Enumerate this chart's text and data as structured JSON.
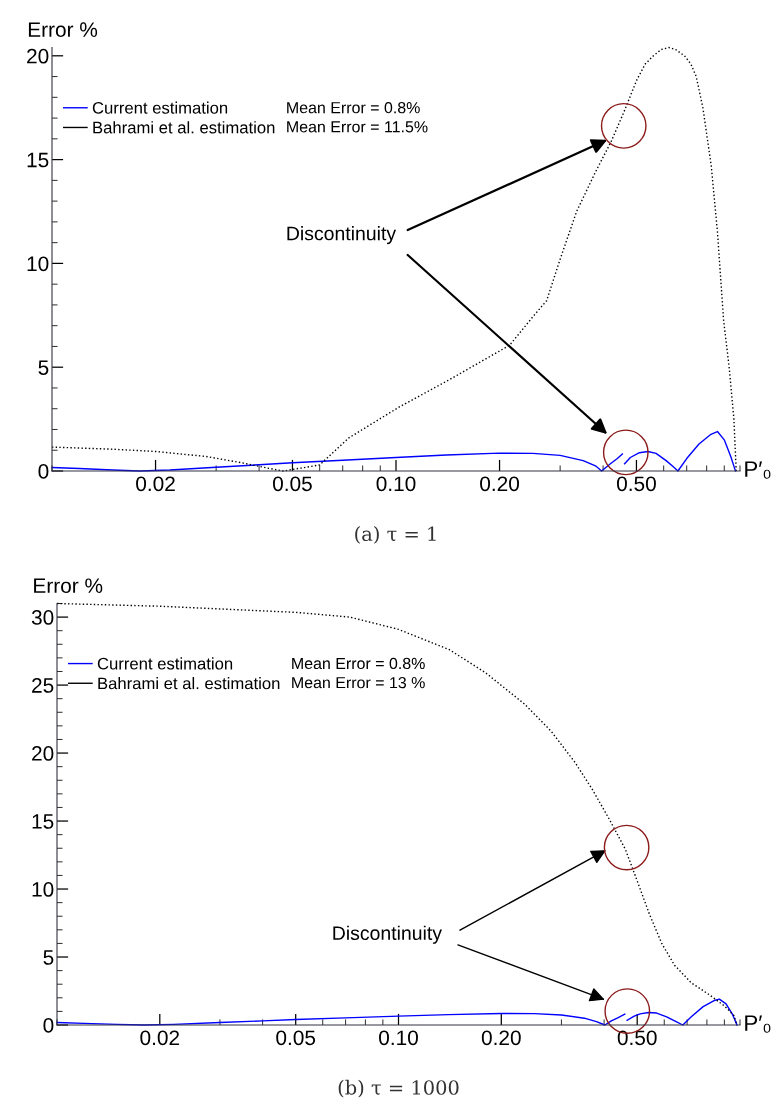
{
  "chart_data": [
    {
      "type": "line",
      "title": "(a) τ = 1",
      "ylabel": "Error %",
      "xlabel": "P′₀",
      "log": "x",
      "xlim": [
        0.01,
        1
      ],
      "ylim": [
        0,
        20.4
      ],
      "xticks": [
        {
          "value": 0.02,
          "label": "0.02"
        },
        {
          "value": 0.05,
          "label": "0.05"
        },
        {
          "value": 0.1,
          "label": "0.10"
        },
        {
          "value": 0.2,
          "label": "0.20"
        },
        {
          "value": 0.5,
          "label": "0.50"
        }
      ],
      "yticks": [
        0,
        5,
        10,
        15,
        20
      ],
      "grid": false,
      "legend": "top left",
      "series": [
        {
          "name": "Current estimation",
          "color": "#0000ff",
          "line_style": "solid",
          "x": [
            0.01,
            0.012,
            0.015,
            0.018,
            0.022,
            0.03,
            0.04,
            0.05,
            0.07,
            0.1,
            0.14,
            0.2,
            0.25,
            0.3,
            0.35,
            0.38,
            0.396,
            0.42,
            0.44,
            0.455,
            0.458,
            0.462,
            0.48,
            0.51,
            0.54,
            0.57,
            0.61,
            0.64,
            0.66,
            0.7,
            0.76,
            0.82,
            0.86,
            0.9,
            0.94,
            0.97
          ],
          "values": [
            0.17,
            0.12,
            0.05,
            0,
            0.05,
            0.18,
            0.3,
            0.4,
            0.52,
            0.65,
            0.77,
            0.86,
            0.85,
            0.75,
            0.5,
            0.25,
            0,
            0.35,
            0.6,
            0.82,
            null,
            0.35,
            0.65,
            0.88,
            0.94,
            0.85,
            0.5,
            0.2,
            0,
            0.6,
            1.3,
            1.75,
            1.9,
            1.5,
            0.7,
            0
          ]
        },
        {
          "name": "Bahrami et al. estimation",
          "color": "#000000",
          "line_style": "dotted",
          "x": [
            0.01,
            0.015,
            0.02,
            0.028,
            0.0353,
            0.042,
            0.047,
            0.06,
            0.073,
            0.1026,
            0.143,
            0.214,
            0.252,
            0.274,
            0.3,
            0.335,
            0.38,
            0.423,
            0.46,
            0.5,
            0.53,
            0.56,
            0.59,
            0.621,
            0.65,
            0.69,
            0.72,
            0.746,
            0.78,
            0.825,
            0.86,
            0.896,
            0.93,
            0.96,
            0.975
          ],
          "values": [
            1.15,
            1.05,
            0.94,
            0.7,
            0.41,
            0.15,
            0,
            0.29,
            1.6,
            3.1,
            4.4,
            6.06,
            7.5,
            8.2,
            10.2,
            12.5,
            14.4,
            15.9,
            17.3,
            18.8,
            19.6,
            20.0,
            20.3,
            20.4,
            20.3,
            20.0,
            19.6,
            19.0,
            17.5,
            14.7,
            11.5,
            7.26,
            5.0,
            2.5,
            0
          ]
        }
      ],
      "annotations": [
        "Mean Error = 0.8%",
        "Mean Error = 11.5%",
        "Discontinuity"
      ]
    },
    {
      "type": "line",
      "title": "(b) τ = 1000",
      "ylabel": "Error %",
      "xlabel": "P′₀",
      "log": "x",
      "xlim": [
        0.01,
        1
      ],
      "ylim": [
        0,
        31
      ],
      "xticks": [
        {
          "value": 0.02,
          "label": "0.02"
        },
        {
          "value": 0.05,
          "label": "0.05"
        },
        {
          "value": 0.1,
          "label": "0.10"
        },
        {
          "value": 0.2,
          "label": "0.20"
        },
        {
          "value": 0.5,
          "label": "0.50"
        }
      ],
      "yticks": [
        0,
        5,
        10,
        15,
        20,
        25,
        30
      ],
      "grid": false,
      "legend": "top left",
      "series": [
        {
          "name": "Current estimation",
          "color": "#0000ff",
          "line_style": "solid",
          "x": [
            0.01,
            0.012,
            0.015,
            0.018,
            0.022,
            0.03,
            0.04,
            0.05,
            0.07,
            0.1,
            0.14,
            0.2,
            0.25,
            0.3,
            0.35,
            0.38,
            0.402,
            0.42,
            0.44,
            0.46,
            0.463,
            0.467,
            0.49,
            0.51,
            0.54,
            0.57,
            0.61,
            0.65,
            0.68,
            0.72,
            0.78,
            0.84,
            0.87,
            0.91,
            0.95,
            0.98
          ],
          "values": [
            0.18,
            0.12,
            0.05,
            0,
            0.05,
            0.18,
            0.3,
            0.4,
            0.52,
            0.65,
            0.76,
            0.85,
            0.84,
            0.74,
            0.5,
            0.25,
            0,
            0.3,
            0.55,
            0.8,
            null,
            0.35,
            0.65,
            0.82,
            0.92,
            0.88,
            0.6,
            0.25,
            0,
            0.6,
            1.35,
            1.8,
            1.9,
            1.55,
            0.8,
            0
          ]
        },
        {
          "name": "Bahrami et al. estimation",
          "color": "#000000",
          "line_style": "dotted",
          "x": [
            0.01,
            0.02,
            0.0367,
            0.05,
            0.072,
            0.1,
            0.141,
            0.18,
            0.234,
            0.28,
            0.329,
            0.37,
            0.415,
            0.462,
            0.5,
            0.544,
            0.59,
            0.643,
            0.72,
            0.816,
            0.9,
            0.96,
            0.98
          ],
          "values": [
            31.0,
            30.8,
            30.5,
            30.35,
            30.0,
            29.1,
            27.6,
            25.9,
            23.6,
            21.6,
            19.3,
            17.3,
            15.1,
            12.9,
            10.6,
            8.1,
            6.0,
            4.4,
            3.1,
            2.2,
            1.4,
            0.7,
            0
          ]
        }
      ],
      "annotations": [
        "Mean Error = 0.8%",
        "Mean Error = 13 %",
        "Discontinuity"
      ]
    }
  ]
}
